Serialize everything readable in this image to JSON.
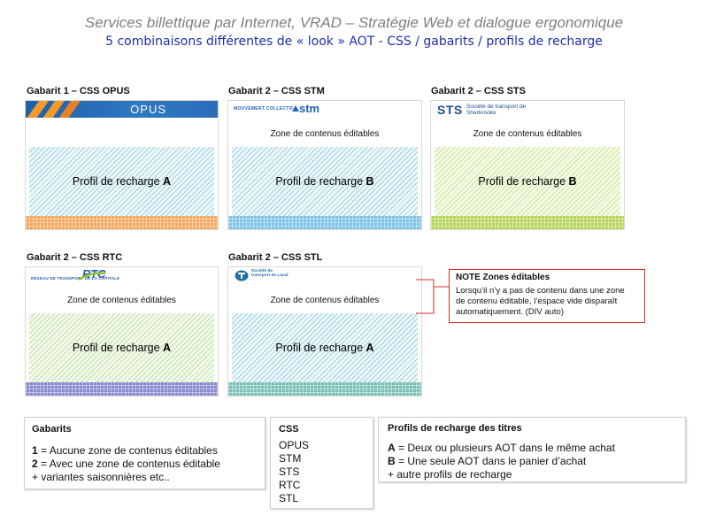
{
  "header": {
    "title": "Services billettique par Internet, VRAD – Stratégie Web et dialogue ergonomique",
    "subtitle": "5 combinaisons différentes de « look » AOT - CSS / gabarits / profils de recharge"
  },
  "panels": [
    {
      "label": "Gabarit 1 – CSS OPUS",
      "logo_text": "OPUS",
      "zone_text": "",
      "profile_prefix": "Profil de recharge ",
      "profile_letter": "A",
      "colors": {
        "footer": "#f3a65c",
        "hatch": "#5aafc8",
        "brand": "#1f5fa8"
      }
    },
    {
      "label": "Gabarit 2 – CSS STM",
      "logo_text": "MOUVEMENT COLLECTIF",
      "logo_text_2": "stm",
      "zone_text": "Zone de contenus éditables",
      "profile_prefix": "Profil de recharge ",
      "profile_letter": "B",
      "colors": {
        "footer": "#7cc2e6",
        "hatch": "#5aafc8",
        "brand": "#1d63b8"
      }
    },
    {
      "label": "Gabarit 2 – CSS STS",
      "logo_text": "STS",
      "logo_text_2": "Société de transport de Sherbrooke",
      "zone_text": "Zone de contenus éditables",
      "profile_prefix": "Profil de recharge ",
      "profile_letter": "B",
      "colors": {
        "footer": "#b7d45a",
        "hatch": "#afd25f",
        "brand": "#1b4f8c"
      }
    },
    {
      "label": "Gabarit 2 – CSS RTC",
      "logo_text": "RÉSEAU DE TRANSPORT DE LA CAPITALE",
      "logo_text_2": "RTC",
      "zone_text": "Zone de contenus éditables",
      "profile_prefix": "Profil de recharge ",
      "profile_letter": "A",
      "colors": {
        "footer": "#8a8ad0",
        "hatch": "#96c86e",
        "brand": "#2a5aa8"
      }
    },
    {
      "label": "Gabarit 2 – CSS STL",
      "logo_text": "Société de transport de Laval",
      "zone_text": "Zone de contenus éditables",
      "profile_prefix": "Profil de recharge ",
      "profile_letter": "A",
      "colors": {
        "footer": "#7bbfb8",
        "hatch": "#5aafc8",
        "brand": "#1f6fa0"
      }
    }
  ],
  "note": {
    "title": "NOTE Zones éditables",
    "lines": [
      "Lorsqu’il n’y a pas de contenu dans une zone",
      "de contenu éditable, l’espace vide disparaît",
      "automatiquement. (DIV auto)"
    ],
    "border_color": "#d0302a"
  },
  "legend": {
    "gabarits": {
      "title": "Gabarits",
      "items": [
        {
          "key": "1",
          "text": " = Aucune zone de contenus éditables"
        },
        {
          "key": "2",
          "text": " = Avec une zone de contenus éditable"
        },
        {
          "key": "",
          "text": "+ variantes saisonnières etc.."
        }
      ]
    },
    "css": {
      "title": "CSS",
      "items": [
        "OPUS",
        "STM",
        "STS",
        "RTC",
        "STL"
      ]
    },
    "profils": {
      "title": "Profils de recharge des titres",
      "items": [
        {
          "key": "A",
          "text": " = Deux ou plusieurs AOT dans le même achat"
        },
        {
          "key": "B",
          "text": " = Une seule AOT dans le panier d’achat"
        },
        {
          "key": "",
          "text": "+ autre profils de recharge"
        }
      ]
    }
  }
}
